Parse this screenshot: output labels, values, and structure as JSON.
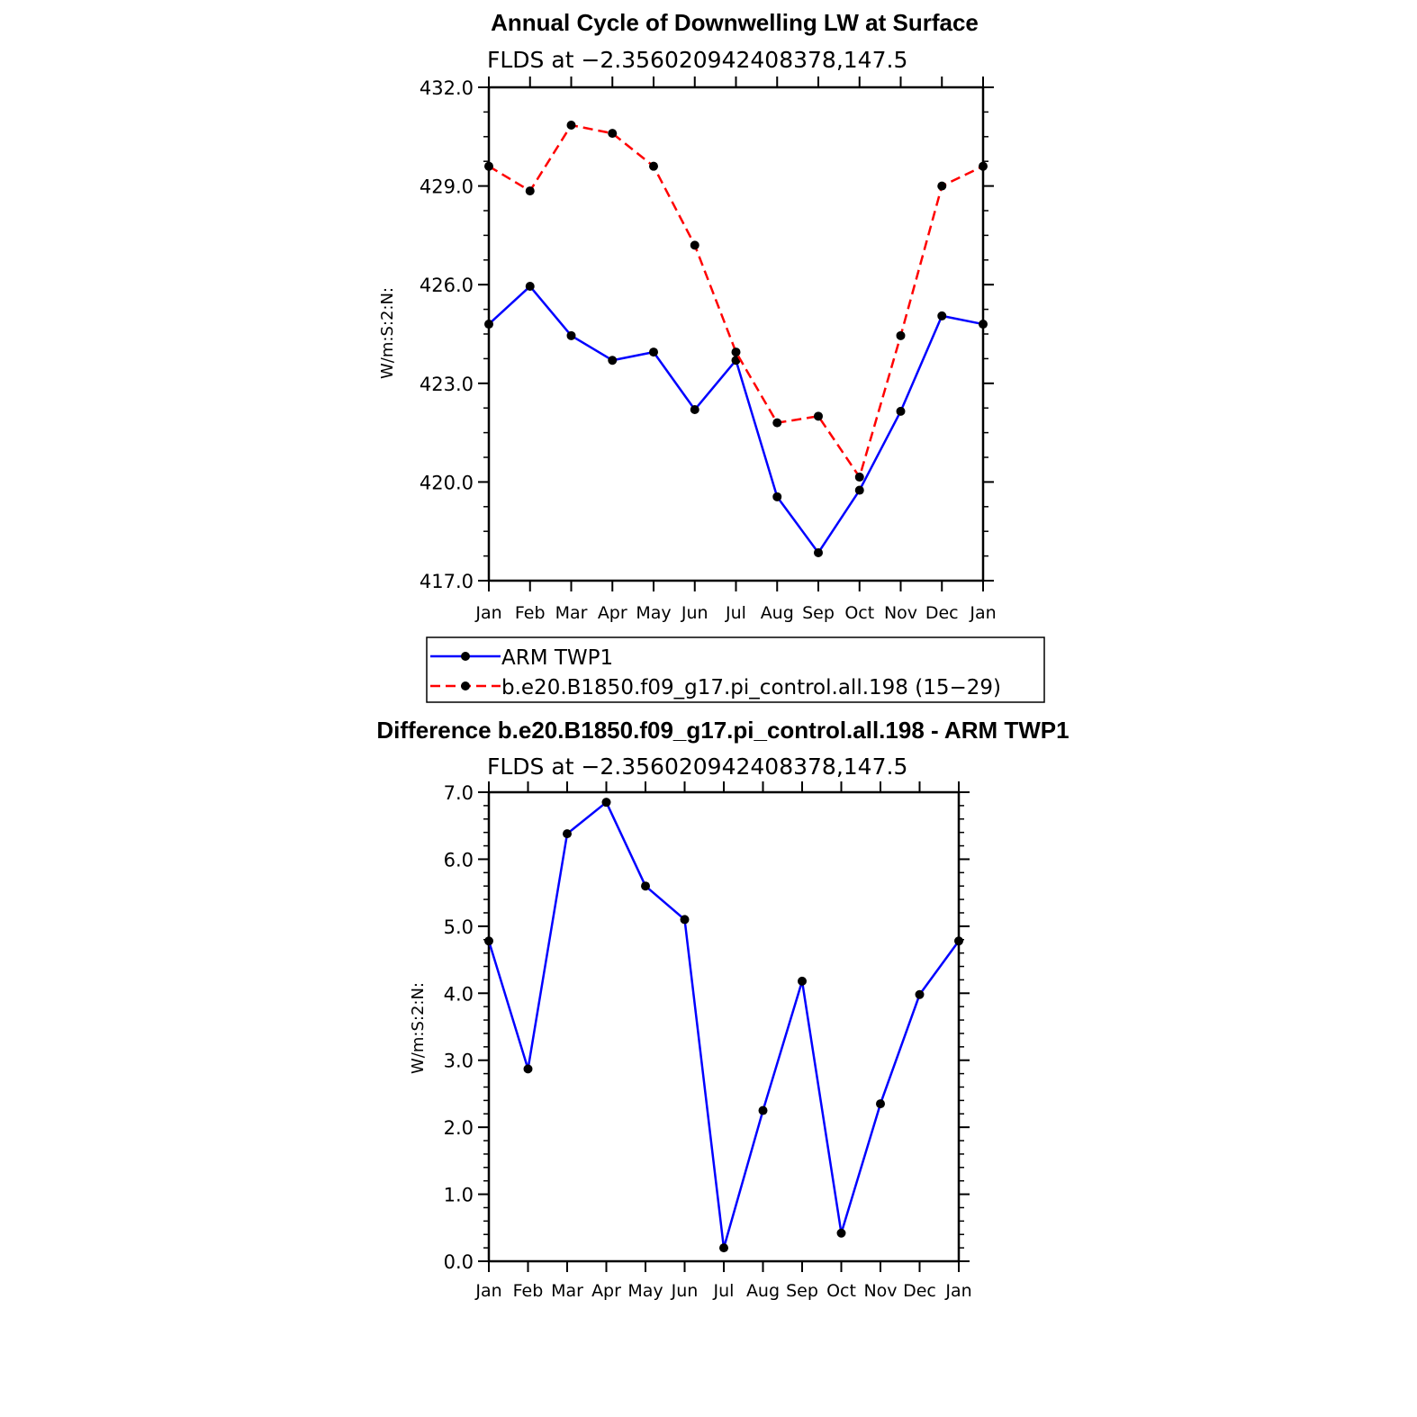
{
  "chart_data": [
    {
      "type": "line",
      "title": "Annual Cycle of Downwelling LW at Surface",
      "subtitle": "FLDS at −2.356020942408378,147.5",
      "ylabel": "W/m:S:2:N:",
      "xlabel": "",
      "categories": [
        "Jan",
        "Feb",
        "Mar",
        "Apr",
        "May",
        "Jun",
        "Jul",
        "Aug",
        "Sep",
        "Oct",
        "Nov",
        "Dec",
        "Jan"
      ],
      "ylim": [
        417.0,
        432.0
      ],
      "yticks": [
        "417.0",
        "420.0",
        "423.0",
        "426.0",
        "429.0",
        "432.0"
      ],
      "grid": false,
      "series": [
        {
          "name": "ARM TWP1",
          "color": "#0000ff",
          "style": "solid",
          "values": [
            424.8,
            425.95,
            424.45,
            423.7,
            423.95,
            422.2,
            423.7,
            419.55,
            417.85,
            419.75,
            422.15,
            425.05,
            424.8
          ]
        },
        {
          "name": "b.e20.B1850.f09_g17.pi_control.all.198 (15−29)",
          "color": "#ff0000",
          "style": "dashed",
          "values": [
            429.6,
            428.85,
            430.85,
            430.6,
            429.6,
            427.2,
            423.95,
            421.8,
            422.0,
            420.15,
            424.45,
            429.0,
            429.6
          ]
        }
      ],
      "legend": "below"
    },
    {
      "type": "line",
      "title": "Difference b.e20.B1850.f09_g17.pi_control.all.198 - ARM TWP1",
      "subtitle": "FLDS at −2.356020942408378,147.5",
      "ylabel": "W/m:S:2:N:",
      "xlabel": "",
      "categories": [
        "Jan",
        "Feb",
        "Mar",
        "Apr",
        "May",
        "Jun",
        "Jul",
        "Aug",
        "Sep",
        "Oct",
        "Nov",
        "Dec",
        "Jan"
      ],
      "ylim": [
        0.0,
        7.0
      ],
      "yticks": [
        "0.0",
        "1.0",
        "2.0",
        "3.0",
        "4.0",
        "5.0",
        "6.0",
        "7.0"
      ],
      "grid": false,
      "series": [
        {
          "color": "#0000ff",
          "style": "solid",
          "values": [
            4.78,
            2.87,
            6.38,
            6.85,
            5.6,
            5.1,
            0.2,
            2.25,
            4.18,
            0.42,
            2.35,
            3.98,
            4.78
          ]
        }
      ]
    }
  ]
}
